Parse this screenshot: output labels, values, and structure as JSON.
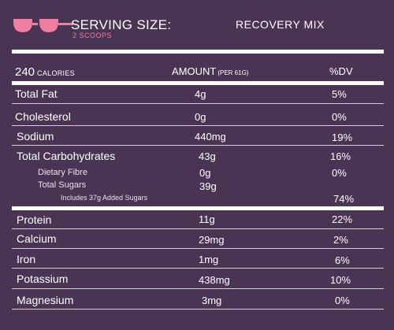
{
  "header": {
    "icon_colors": {
      "accent": "#ee7fa0"
    },
    "serving_label": "SERVING SIZE:",
    "serving_value": "2 SCOOPS",
    "product_name": "RECOVERY MIX"
  },
  "columns": {
    "calories_value": "240",
    "calories_label": "CALORIES",
    "amount_label": "AMOUNT",
    "amount_sub": "(PER 61G)",
    "dv_label": "%DV"
  },
  "rows": [
    {
      "label": "Total Fat",
      "amount": "4g",
      "dv": "5%"
    },
    {
      "label": "Cholesterol",
      "amount": "0g",
      "dv": "0%"
    },
    {
      "label": "Sodium",
      "amount": "440mg",
      "dv": "19%"
    },
    {
      "label": "Total Carbohydrates",
      "amount": "43g",
      "dv": "16%"
    },
    {
      "label": "Dietary Fibre",
      "amount": "0g",
      "dv": "0%"
    },
    {
      "label": "Total Sugars",
      "amount": "39g",
      "dv": ""
    },
    {
      "label": "Includes 37g Added Sugars",
      "amount": "",
      "dv": "74%"
    },
    {
      "label": "Protein",
      "amount": "11g",
      "dv": "22%"
    },
    {
      "label": "Calcium",
      "amount": "29mg",
      "dv": "2%"
    },
    {
      "label": "Iron",
      "amount": "1mg",
      "dv": "6%"
    },
    {
      "label": "Potassium",
      "amount": "438mg",
      "dv": "10%"
    },
    {
      "label": "Magnesium",
      "amount": "3mg",
      "dv": "0%"
    }
  ]
}
